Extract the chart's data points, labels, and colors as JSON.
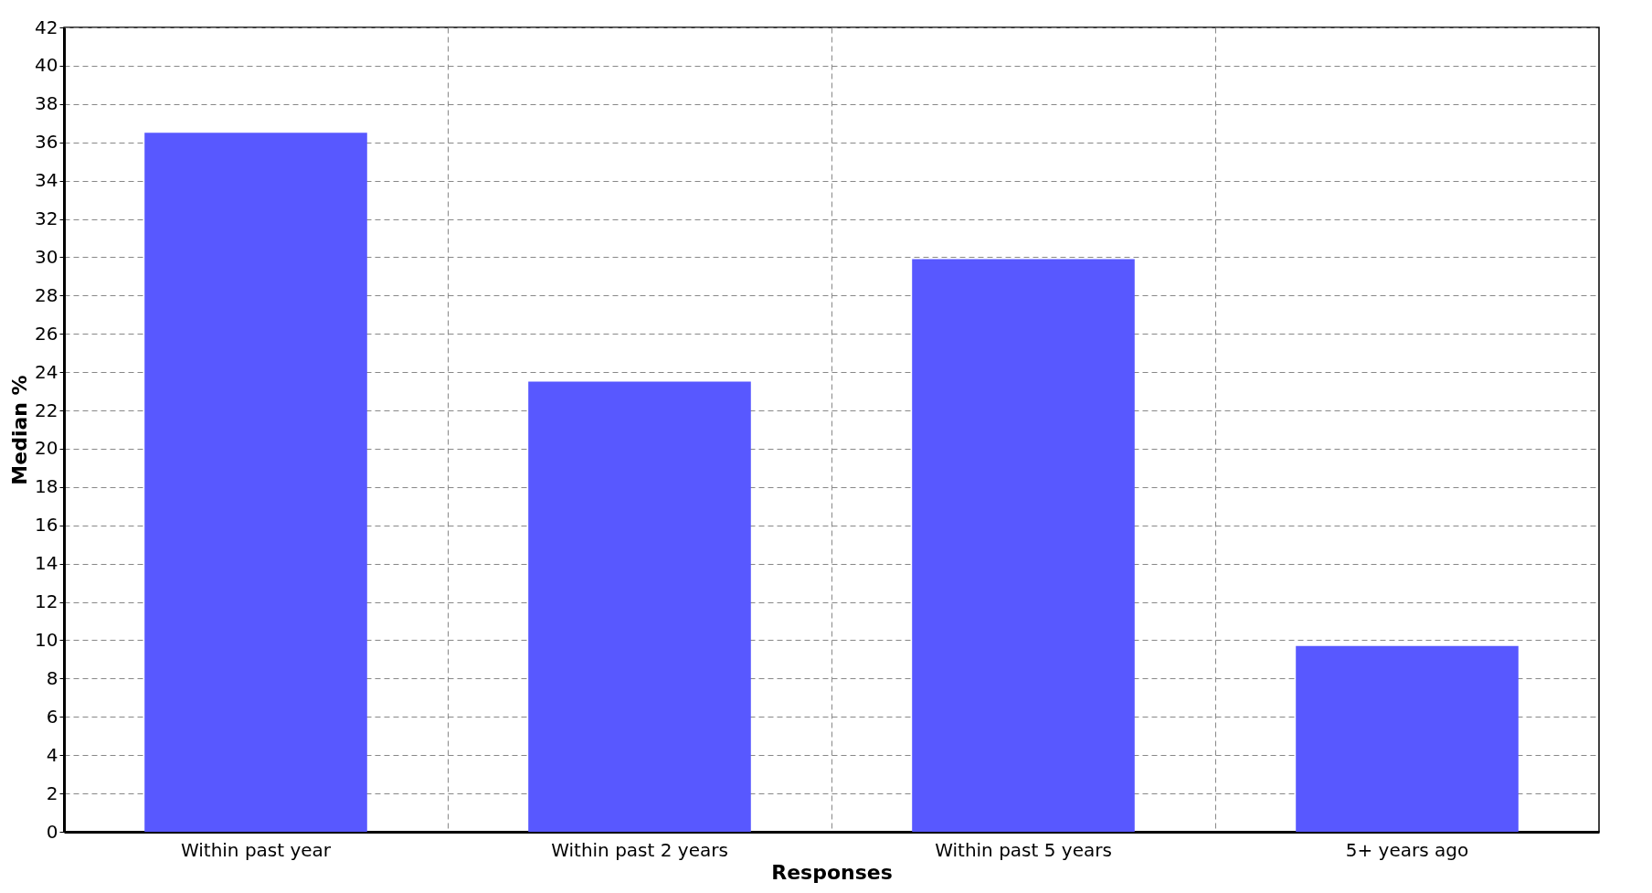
{
  "chart_data": {
    "type": "bar",
    "xlabel": "Responses",
    "ylabel": "Median %",
    "categories": [
      "Within past year",
      "Within past 2 years",
      "Within past 5 years",
      "5+ years ago"
    ],
    "values": [
      36.5,
      23.5,
      29.9,
      9.7
    ],
    "color": "#5858ff",
    "ylim": [
      0,
      42
    ],
    "yticks": [
      0,
      2,
      4,
      6,
      8,
      10,
      12,
      14,
      16,
      18,
      20,
      22,
      24,
      26,
      28,
      30,
      32,
      34,
      36,
      38,
      40,
      42
    ],
    "grid": true
  }
}
